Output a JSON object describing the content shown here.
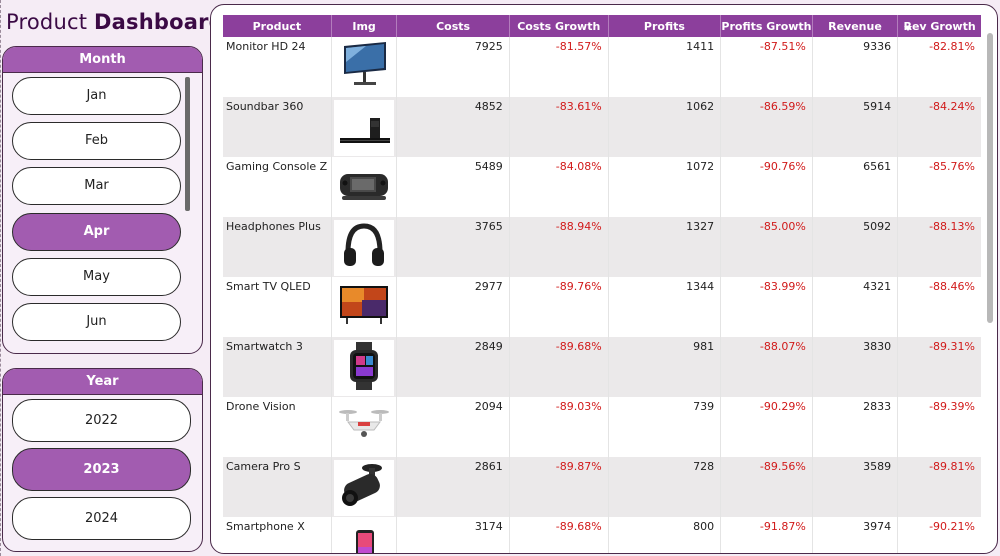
{
  "title": {
    "prefix": "Product",
    "bold": "Dashboard"
  },
  "month_panel": {
    "header": "Month",
    "items": [
      "Jan",
      "Feb",
      "Mar",
      "Apr",
      "May",
      "Jun"
    ],
    "selected": "Apr"
  },
  "year_panel": {
    "header": "Year",
    "items": [
      "2022",
      "2023",
      "2024"
    ],
    "selected": "2023"
  },
  "table": {
    "columns": [
      "Product",
      "Img",
      "Costs",
      "Costs Growth",
      "Profits",
      "Profits Growth",
      "Revenue",
      "Rev Growth"
    ],
    "sort_column": "Rev Growth",
    "rows": [
      {
        "product": "Monitor HD 24",
        "img": "monitor-icon",
        "costs": "7925",
        "costs_growth": "-81.57%",
        "profits": "1411",
        "profits_growth": "-87.51%",
        "revenue": "9336",
        "rev_growth": "-82.81%"
      },
      {
        "product": "Soundbar 360",
        "img": "soundbar-icon",
        "costs": "4852",
        "costs_growth": "-83.61%",
        "profits": "1062",
        "profits_growth": "-86.59%",
        "revenue": "5914",
        "rev_growth": "-84.24%"
      },
      {
        "product": "Gaming Console Z",
        "img": "console-icon",
        "costs": "5489",
        "costs_growth": "-84.08%",
        "profits": "1072",
        "profits_growth": "-90.76%",
        "revenue": "6561",
        "rev_growth": "-85.76%"
      },
      {
        "product": "Headphones Plus",
        "img": "headphones-icon",
        "costs": "3765",
        "costs_growth": "-88.94%",
        "profits": "1327",
        "profits_growth": "-85.00%",
        "revenue": "5092",
        "rev_growth": "-88.13%"
      },
      {
        "product": "Smart TV QLED",
        "img": "tv-icon",
        "costs": "2977",
        "costs_growth": "-89.76%",
        "profits": "1344",
        "profits_growth": "-83.99%",
        "revenue": "4321",
        "rev_growth": "-88.46%"
      },
      {
        "product": "Smartwatch 3",
        "img": "smartwatch-icon",
        "costs": "2849",
        "costs_growth": "-89.68%",
        "profits": "981",
        "profits_growth": "-88.07%",
        "revenue": "3830",
        "rev_growth": "-89.31%"
      },
      {
        "product": "Drone Vision",
        "img": "drone-icon",
        "costs": "2094",
        "costs_growth": "-89.03%",
        "profits": "739",
        "profits_growth": "-90.29%",
        "revenue": "2833",
        "rev_growth": "-89.39%"
      },
      {
        "product": "Camera Pro S",
        "img": "camera-icon",
        "costs": "2861",
        "costs_growth": "-89.87%",
        "profits": "728",
        "profits_growth": "-89.56%",
        "revenue": "3589",
        "rev_growth": "-89.81%"
      },
      {
        "product": "Smartphone X",
        "img": "smartphone-icon",
        "costs": "3174",
        "costs_growth": "-89.68%",
        "profits": "800",
        "profits_growth": "-91.87%",
        "revenue": "3974",
        "rev_growth": "-90.21%"
      }
    ]
  },
  "colors": {
    "accent": "#a25cb0",
    "header": "#8c3f9c",
    "negative": "#d11a1a",
    "title": "#3b0a45"
  }
}
